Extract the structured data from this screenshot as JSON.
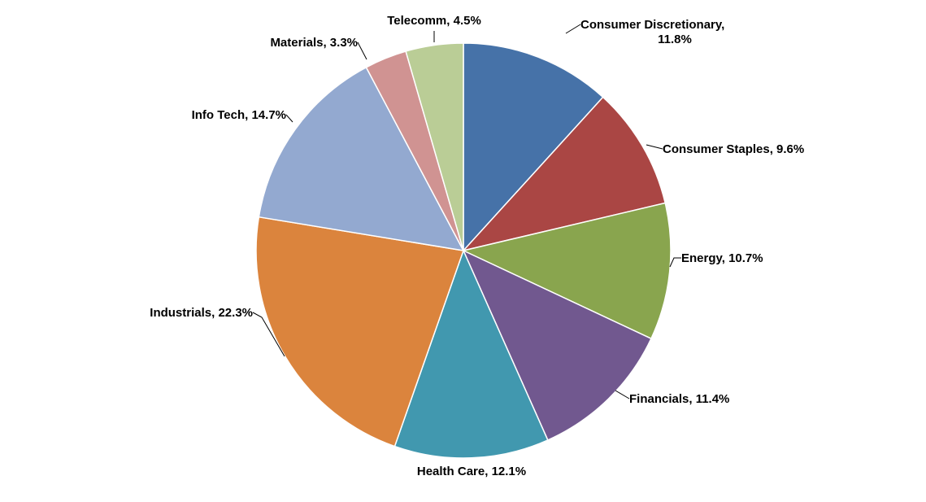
{
  "chart_data": {
    "type": "pie",
    "title": "",
    "start_angle_deg": 0,
    "direction": "clockwise",
    "slices": [
      {
        "label": "Consumer Discretionary,",
        "label2": "11.8%",
        "value": 11.8,
        "color": "#4672A8"
      },
      {
        "label": "Consumer Staples, 9.6%",
        "value": 9.6,
        "color": "#AA4644"
      },
      {
        "label": "Energy, 10.7%",
        "value": 10.7,
        "color": "#89A54E"
      },
      {
        "label": "Financials, 11.4%",
        "value": 11.4,
        "color": "#71588F"
      },
      {
        "label": "Health Care, 12.1%",
        "value": 12.1,
        "color": "#4198AF"
      },
      {
        "label": "Industrials, 22.3%",
        "value": 22.3,
        "color": "#DB843D"
      },
      {
        "label": "Info Tech, 14.7%",
        "value": 14.7,
        "color": "#93A9D0"
      },
      {
        "label": "Materials, 3.3%",
        "value": 3.3,
        "color": "#D09392"
      },
      {
        "label": "Telecomm, 4.5%",
        "value": 4.5,
        "color": "#BACD96"
      }
    ]
  }
}
